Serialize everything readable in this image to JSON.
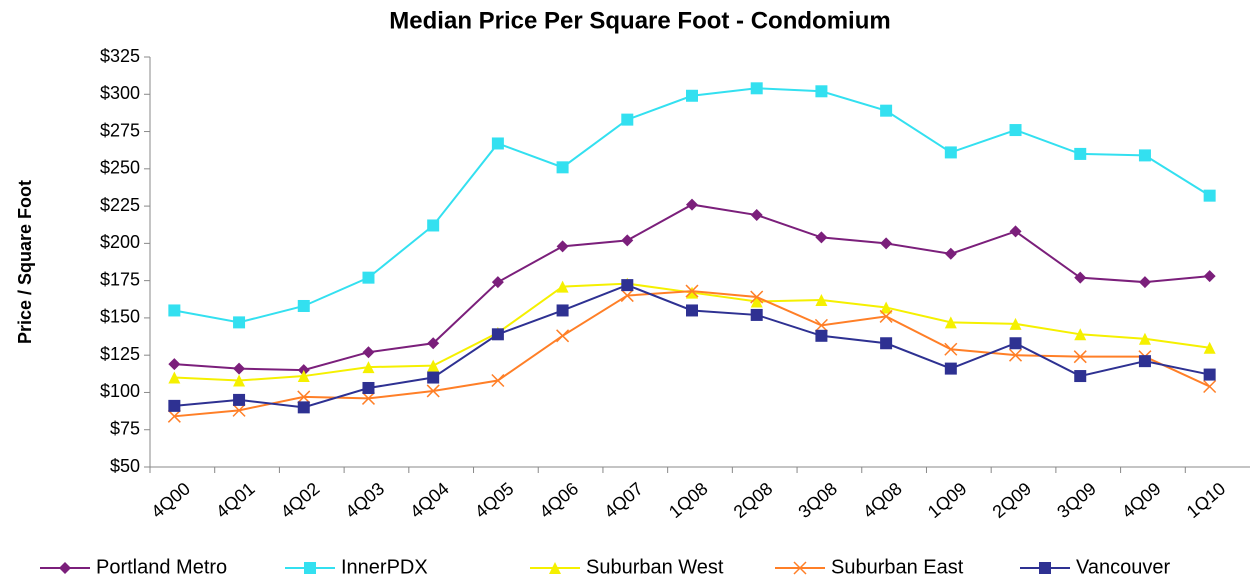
{
  "chart_data": {
    "type": "line",
    "title": "Median Price Per Square Foot - Condomium",
    "y_label": "Price / Square Foot",
    "categories": [
      "4Q00",
      "4Q01",
      "4Q02",
      "4Q03",
      "4Q04",
      "4Q05",
      "4Q06",
      "4Q07",
      "1Q08",
      "2Q08",
      "3Q08",
      "4Q08",
      "1Q09",
      "2Q09",
      "3Q09",
      "4Q09",
      "1Q10"
    ],
    "ylim": [
      50,
      325
    ],
    "yticks": [
      {
        "value": 50,
        "label": "$50"
      },
      {
        "value": 75,
        "label": "$75"
      },
      {
        "value": 100,
        "label": "$100"
      },
      {
        "value": 125,
        "label": "$125"
      },
      {
        "value": 150,
        "label": "$150"
      },
      {
        "value": 175,
        "label": "$175"
      },
      {
        "value": 200,
        "label": "$200"
      },
      {
        "value": 225,
        "label": "$225"
      },
      {
        "value": 250,
        "label": "$250"
      },
      {
        "value": 275,
        "label": "$275"
      },
      {
        "value": 300,
        "label": "$300"
      },
      {
        "value": 325,
        "label": "$325"
      }
    ],
    "grid": false,
    "legend": "bottom",
    "series": [
      {
        "name": "Portland Metro",
        "color": "#7b1f7b",
        "marker": "diamond",
        "values": [
          119,
          116,
          115,
          127,
          133,
          174,
          198,
          202,
          226,
          219,
          204,
          200,
          193,
          208,
          177,
          174,
          178
        ]
      },
      {
        "name": "InnerPDX",
        "color": "#33e0f0",
        "marker": "square",
        "values": [
          155,
          147,
          158,
          177,
          212,
          267,
          251,
          283,
          299,
          304,
          302,
          289,
          261,
          276,
          260,
          259,
          232
        ]
      },
      {
        "name": "Suburban West",
        "color": "#f5f000",
        "marker": "triangle",
        "values": [
          110,
          108,
          111,
          117,
          118,
          140,
          171,
          173,
          167,
          161,
          162,
          157,
          147,
          146,
          139,
          136,
          130
        ]
      },
      {
        "name": "Suburban East",
        "color": "#ff7f27",
        "marker": "x",
        "values": [
          84,
          88,
          97,
          96,
          101,
          108,
          138,
          165,
          168,
          164,
          145,
          151,
          129,
          125,
          124,
          124,
          104
        ]
      },
      {
        "name": "Vancouver",
        "color": "#2e3192",
        "marker": "square",
        "values": [
          91,
          95,
          90,
          103,
          110,
          139,
          155,
          172,
          155,
          152,
          138,
          133,
          116,
          133,
          111,
          121,
          112
        ]
      }
    ]
  }
}
